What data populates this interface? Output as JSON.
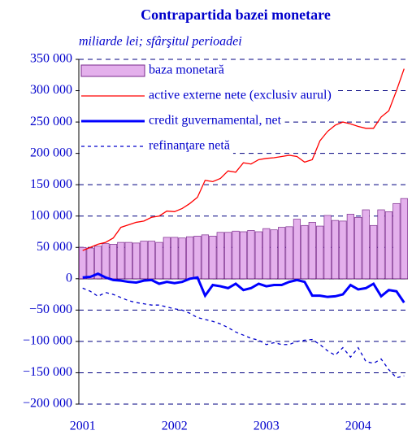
{
  "chart_data": {
    "type": "bar_line",
    "title": "Contrapartida bazei monetare",
    "subtitle": "miliarde lei; sfârşitul perioadei",
    "categories": [
      "2001",
      null,
      null,
      null,
      null,
      null,
      null,
      null,
      null,
      null,
      null,
      null,
      "2002",
      null,
      null,
      null,
      null,
      null,
      null,
      null,
      null,
      null,
      null,
      null,
      "2003",
      null,
      null,
      null,
      null,
      null,
      null,
      null,
      null,
      null,
      null,
      null,
      "2004",
      null,
      null,
      null,
      null,
      null,
      null
    ],
    "series": [
      {
        "name": "baza monetară",
        "kind": "bar",
        "color": "#e4b0ec",
        "values": [
          50000,
          49000,
          52000,
          56000,
          55000,
          58000,
          58000,
          57000,
          60000,
          60000,
          58000,
          66000,
          66000,
          65000,
          67000,
          68000,
          70000,
          68000,
          74000,
          74000,
          76000,
          75000,
          77000,
          75000,
          80000,
          78000,
          82000,
          83000,
          95000,
          85000,
          90000,
          84000,
          101000,
          93000,
          92000,
          103000,
          98000,
          110000,
          85000,
          110000,
          107000,
          120000,
          128000
        ]
      },
      {
        "name": "active externe nete (exclusiv aurul)",
        "kind": "line",
        "color": "#ff0000",
        "values": [
          45000,
          50000,
          55000,
          58000,
          65000,
          82000,
          86000,
          90000,
          92000,
          98000,
          100000,
          108000,
          107000,
          112000,
          120000,
          130000,
          157000,
          155000,
          160000,
          172000,
          170000,
          185000,
          183000,
          190000,
          192000,
          193000,
          195000,
          197000,
          195000,
          186000,
          190000,
          220000,
          235000,
          245000,
          250000,
          247000,
          243000,
          240000,
          240000,
          258000,
          268000,
          300000,
          335000
        ]
      },
      {
        "name": "credit guvernamental, net",
        "kind": "thick",
        "color": "#0000ff",
        "values": [
          2000,
          3000,
          8000,
          2000,
          -2000,
          -3000,
          -5000,
          -6000,
          -3000,
          -2000,
          -8000,
          -5000,
          -7000,
          -5000,
          0,
          2000,
          -27000,
          -10000,
          -12000,
          -15000,
          -8000,
          -18000,
          -15000,
          -8000,
          -12000,
          -10000,
          -10000,
          -5000,
          -2000,
          -5000,
          -27000,
          -27000,
          -29000,
          -28000,
          -25000,
          -10000,
          -17000,
          -15000,
          -8000,
          -28000,
          -18000,
          -20000,
          -38000
        ]
      },
      {
        "name": "refinanţare netă",
        "kind": "dashed",
        "color": "#0000cc",
        "values": [
          -15000,
          -20000,
          -28000,
          -22000,
          -25000,
          -30000,
          -35000,
          -38000,
          -40000,
          -42000,
          -42000,
          -45000,
          -48000,
          -50000,
          -55000,
          -62000,
          -65000,
          -68000,
          -72000,
          -78000,
          -85000,
          -90000,
          -95000,
          -98000,
          -105000,
          -102000,
          -105000,
          -105000,
          -100000,
          -98000,
          -97000,
          -105000,
          -115000,
          -122000,
          -110000,
          -125000,
          -110000,
          -132000,
          -135000,
          -128000,
          -145000,
          -158000,
          -155000
        ]
      }
    ],
    "ylim": [
      -200000,
      350000
    ],
    "yticks": [
      {
        "value": -200000,
        "label": "−200 000"
      },
      {
        "value": -150000,
        "label": "−150 000"
      },
      {
        "value": -100000,
        "label": "−100 000"
      },
      {
        "value": -50000,
        "label": "−50 000"
      },
      0,
      {
        "value": 50000,
        "label": "50 000"
      },
      {
        "value": 100000,
        "label": "100 000"
      },
      {
        "value": 150000,
        "label": "150 000"
      },
      {
        "value": 200000,
        "label": "200 000"
      },
      {
        "value": 250000,
        "label": "250 000"
      },
      {
        "value": 300000,
        "label": "300 000"
      },
      {
        "value": 350000,
        "label": "350 000"
      }
    ],
    "grid": true
  }
}
